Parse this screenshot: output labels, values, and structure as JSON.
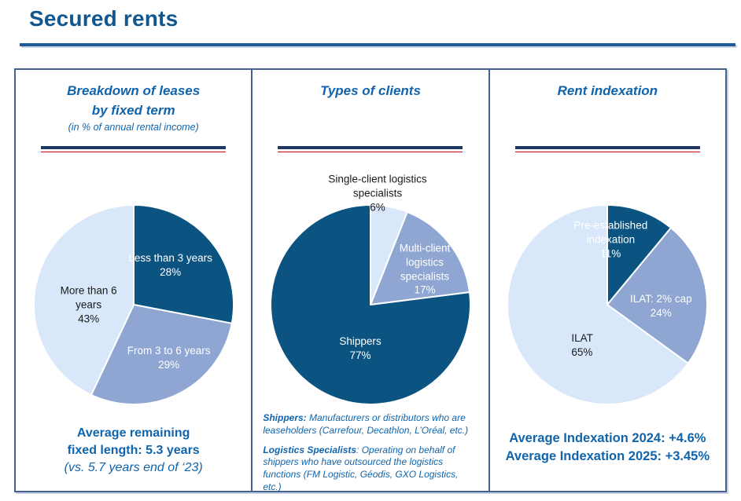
{
  "page": {
    "title": "Secured rents"
  },
  "colors": {
    "accent_blue": "#1064AC",
    "title_blue": "#12568E",
    "navy_rule": "#1F3864",
    "red_rule": "#C00000",
    "panel_border": "#44618F",
    "pie_dark": "#0B5380",
    "pie_medium": "#8FA6D2",
    "pie_light": "#D9E7FA"
  },
  "panels": [
    {
      "title_lines": [
        "Breakdown of leases",
        "by fixed term"
      ],
      "subtitle": "(in % of annual rental income)",
      "footer": {
        "line1": "Average remaining",
        "line2": "fixed length: 5.3 years",
        "line3": "(vs. 5.7 years end of ‘23)"
      }
    },
    {
      "title_lines": [
        "Types of clients"
      ],
      "notes": [
        {
          "term": "Shippers:",
          "rest": " Manufacturers or distributors who are leaseholders (Carrefour, Decathlon, L’Oréal, etc.)"
        },
        {
          "term": "Logistics Specialists",
          "rest": ":  Operating on behalf of shippers who have outsourced the logistics functions (FM Logistic, Géodis, GXO Logistics, etc.)"
        }
      ]
    },
    {
      "title_lines": [
        "Rent indexation"
      ],
      "footer": {
        "line1": "Average Indexation 2024: +4.6%",
        "line2": "Average Indexation 2025: +3.45%"
      }
    }
  ],
  "chart_data": [
    {
      "type": "pie",
      "title": "Breakdown of leases by fixed term",
      "unit": "in % of annual rental income",
      "start_angle_deg": 0,
      "direction": "clockwise",
      "slices": [
        {
          "label": "Less than 3 years",
          "value": 28,
          "color": "#0B5380",
          "label_color": "#FFFFFF",
          "label_lines": [
            "Less than 3 years",
            "28%"
          ]
        },
        {
          "label": "From 3 to 6 years",
          "value": 29,
          "color": "#8FA6D2",
          "label_color": "#FFFFFF",
          "label_lines": [
            "From 3 to 6 years",
            "29%"
          ]
        },
        {
          "label": "More than 6 years",
          "value": 43,
          "color": "#D9E7FA",
          "label_color": "#1A1A1A",
          "label_lines": [
            "More than 6",
            "years",
            "43%"
          ]
        }
      ]
    },
    {
      "type": "pie",
      "title": "Types of clients",
      "start_angle_deg": 0,
      "direction": "clockwise",
      "slices": [
        {
          "label": "Single-client logistics specialists",
          "value": 6,
          "color": "#D9E7FA",
          "label_color": "#1A1A1A",
          "label_lines": [
            "Single-client logistics",
            "specialists",
            "6%"
          ]
        },
        {
          "label": "Multi-client logistics specialists",
          "value": 17,
          "color": "#8FA6D2",
          "label_color": "#FFFFFF",
          "label_lines": [
            "Multi-client",
            "logistics",
            "specialists",
            "17%"
          ]
        },
        {
          "label": "Shippers",
          "value": 77,
          "color": "#0B5380",
          "label_color": "#FFFFFF",
          "label_lines": [
            "Shippers",
            "77%"
          ]
        }
      ]
    },
    {
      "type": "pie",
      "title": "Rent indexation",
      "start_angle_deg": 0,
      "direction": "clockwise",
      "slices": [
        {
          "label": "Pre-established indexation",
          "value": 11,
          "color": "#0B5380",
          "label_color": "#FFFFFF",
          "label_lines": [
            "Pre-established",
            "indexation",
            "11%"
          ]
        },
        {
          "label": "ILAT: 2% cap",
          "value": 24,
          "color": "#8FA6D2",
          "label_color": "#FFFFFF",
          "label_lines": [
            "ILAT: 2% cap",
            "24%"
          ]
        },
        {
          "label": "ILAT",
          "value": 65,
          "color": "#D9E7FA",
          "label_color": "#1A1A1A",
          "label_lines": [
            "ILAT",
            "65%"
          ]
        }
      ]
    }
  ]
}
